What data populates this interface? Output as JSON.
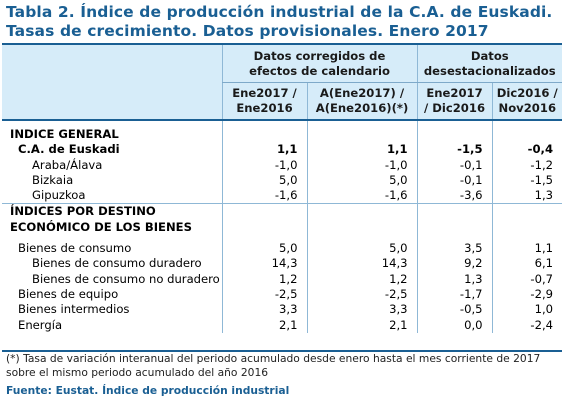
{
  "title_line1": "Tabla 2. Índice de producción industrial de la C.A. de Euskadi.",
  "title_line2": "Tasas de crecimiento. Datos provisionales. Enero 2017",
  "header": {
    "group1_line1": "Datos corregidos de",
    "group1_line2": "efectos de calendario",
    "group2_line1": "Datos",
    "group2_line2": "desestacionalizados",
    "col1_line1": "Ene2017 /",
    "col1_line2": "Ene2016",
    "col2_line1": "A(Ene2017) /",
    "col2_line2": "A(Ene2016)(*)",
    "col3_line1": "Ene2017",
    "col3_line2": "/ Dic2016",
    "col4_line1": "Dic2016 /",
    "col4_line2": "Nov2016"
  },
  "section1": {
    "heading": "INDICE GENERAL",
    "rows": [
      {
        "label": "C.A. de Euskadi",
        "v1": "1,1",
        "v2": "1,1",
        "v3": "-1,5",
        "v4": "-0,4"
      },
      {
        "label": "Araba/Álava",
        "v1": "-1,0",
        "v2": "-1,0",
        "v3": "-0,1",
        "v4": "-1,2"
      },
      {
        "label": "Bizkaia",
        "v1": "5,0",
        "v2": "5,0",
        "v3": "-0,1",
        "v4": "-1,5"
      },
      {
        "label": "Gipuzkoa",
        "v1": "-1,6",
        "v2": "-1,6",
        "v3": "-3,6",
        "v4": "1,3"
      }
    ]
  },
  "section2": {
    "heading_line1": "ÍNDICES POR DESTINO",
    "heading_line2": "ECONÓMICO DE LOS BIENES",
    "rows": [
      {
        "label": "Bienes de consumo",
        "v1": "5,0",
        "v2": "5,0",
        "v3": "3,5",
        "v4": "1,1"
      },
      {
        "label": "Bienes de consumo duradero",
        "v1": "14,3",
        "v2": "14,3",
        "v3": "9,2",
        "v4": "6,1"
      },
      {
        "label": "Bienes de consumo no duradero",
        "v1": "1,2",
        "v2": "1,2",
        "v3": "1,3",
        "v4": "-0,7"
      },
      {
        "label": "Bienes de equipo",
        "v1": "-2,5",
        "v2": "-2,5",
        "v3": "-1,7",
        "v4": "-2,9"
      },
      {
        "label": "Bienes intermedios",
        "v1": "3,3",
        "v2": "3,3",
        "v3": "-0,5",
        "v4": "1,0"
      },
      {
        "label": "Energía",
        "v1": "2,1",
        "v2": "2,1",
        "v3": "0,0",
        "v4": "-2,4"
      }
    ]
  },
  "note": "(*) Tasa de variación interanual del periodo acumulado desde enero hasta el mes corriente de 2017 sobre el mismo periodo acumulado del año 2016",
  "source": "Fuente: Eustat. Índice de producción industrial",
  "colors": {
    "accent": "#1a5f93",
    "header_bg": "#d6ecf9"
  }
}
